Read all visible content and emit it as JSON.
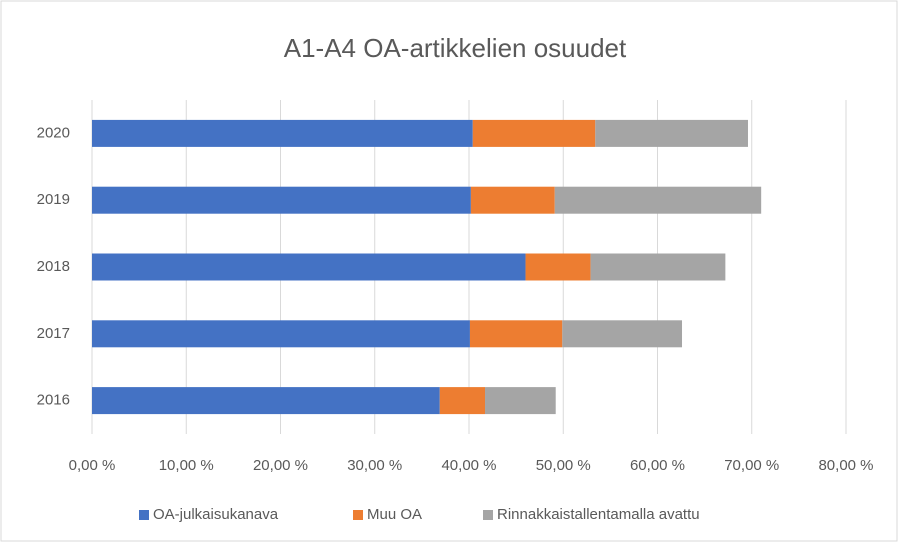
{
  "chart_data": {
    "type": "bar",
    "orientation": "horizontal",
    "stacked": true,
    "title": "A1-A4 OA-artikkelien osuudet",
    "categories": [
      "2020",
      "2019",
      "2018",
      "2017",
      "2016"
    ],
    "series": [
      {
        "name": "OA-julkaisukanava",
        "color": "#4472c4",
        "values": [
          40.4,
          40.2,
          46.0,
          40.1,
          36.9
        ]
      },
      {
        "name": "Muu OA",
        "color": "#ed7d31",
        "values": [
          13.0,
          8.9,
          6.9,
          9.8,
          4.8
        ]
      },
      {
        "name": "Rinnakkaistallentamalla avattu",
        "color": "#a5a5a5",
        "values": [
          16.2,
          21.9,
          14.3,
          12.7,
          7.5
        ]
      }
    ],
    "xlim": [
      0,
      80
    ],
    "xticks": [
      {
        "value": 0,
        "label": "0,00 %"
      },
      {
        "value": 10,
        "label": "10,00 %"
      },
      {
        "value": 20,
        "label": "20,00 %"
      },
      {
        "value": 30,
        "label": "30,00 %"
      },
      {
        "value": 40,
        "label": "40,00 %"
      },
      {
        "value": 50,
        "label": "50,00 %"
      },
      {
        "value": 60,
        "label": "60,00 %"
      },
      {
        "value": 70,
        "label": "70,00 %"
      },
      {
        "value": 80,
        "label": "80,00 %"
      }
    ],
    "grid": true,
    "legend": "bottom"
  }
}
